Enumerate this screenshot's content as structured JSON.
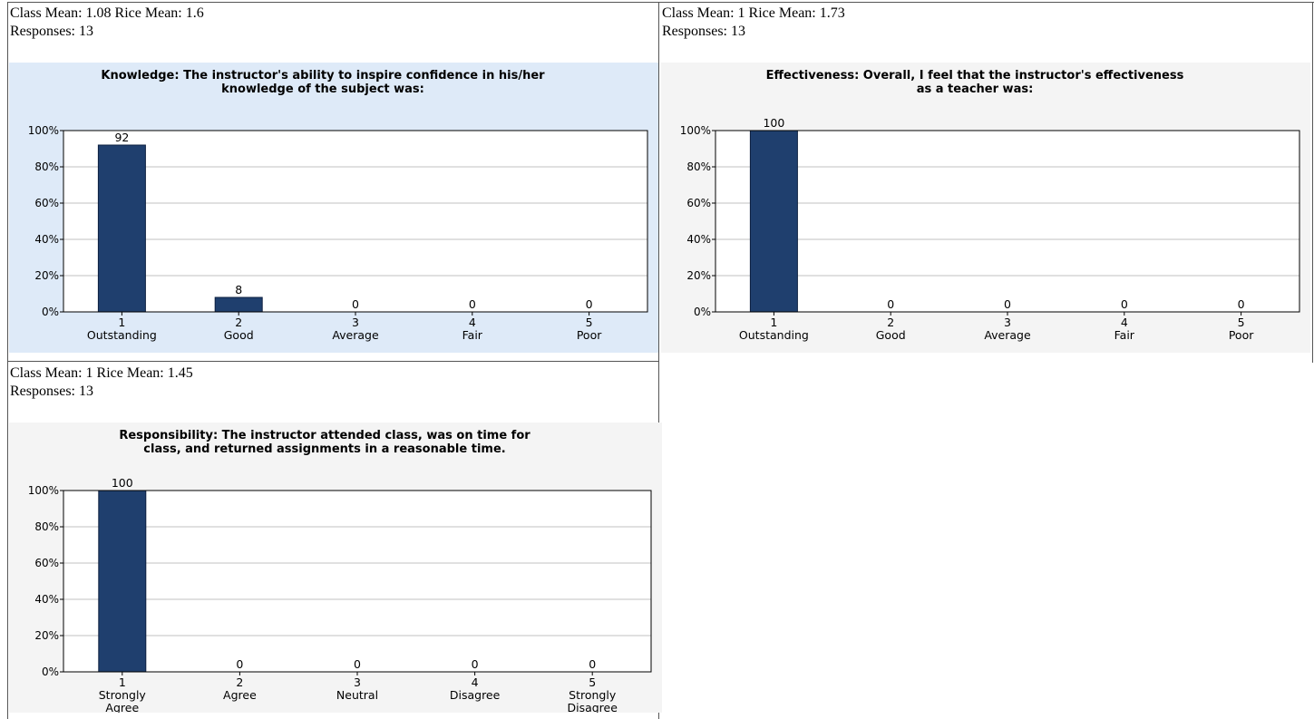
{
  "panels": [
    {
      "stats": {
        "line1": "Class Mean: 1.08 Rice Mean: 1.6",
        "line2": "Responses: 13"
      },
      "bg": "#deeaf8",
      "chart_data": {
        "type": "bar",
        "title_lines": [
          "Knowledge: The instructor's ability to inspire confidence in his/her",
          "knowledge of the subject was:"
        ],
        "categories": [
          [
            "1",
            "Outstanding"
          ],
          [
            "2",
            "Good"
          ],
          [
            "3",
            "Average"
          ],
          [
            "4",
            "Fair"
          ],
          [
            "5",
            "Poor"
          ]
        ],
        "values": [
          92,
          8,
          0,
          0,
          0
        ],
        "ylim": [
          0,
          100
        ],
        "yticks": [
          "0%",
          "20%",
          "40%",
          "60%",
          "80%",
          "100%"
        ],
        "grid": true
      }
    },
    {
      "stats": {
        "line1": "Class Mean: 1 Rice Mean: 1.73",
        "line2": "Responses: 13"
      },
      "bg": "#f4f4f4",
      "chart_data": {
        "type": "bar",
        "title_lines": [
          "Effectiveness: Overall, I feel that the instructor's effectiveness",
          "as a teacher was:"
        ],
        "categories": [
          [
            "1",
            "Outstanding"
          ],
          [
            "2",
            "Good"
          ],
          [
            "3",
            "Average"
          ],
          [
            "4",
            "Fair"
          ],
          [
            "5",
            "Poor"
          ]
        ],
        "values": [
          100,
          0,
          0,
          0,
          0
        ],
        "ylim": [
          0,
          100
        ],
        "yticks": [
          "0%",
          "20%",
          "40%",
          "60%",
          "80%",
          "100%"
        ],
        "grid": true
      }
    },
    {
      "stats": {
        "line1": "Class Mean: 1 Rice Mean: 1.45",
        "line2": "Responses: 13"
      },
      "bg": "#f4f4f4",
      "chart_data": {
        "type": "bar",
        "title_lines": [
          "Responsibility: The instructor attended class, was on time for",
          "class, and returned assignments in a reasonable time."
        ],
        "categories": [
          [
            "1",
            "Strongly",
            "Agree"
          ],
          [
            "2",
            "Agree"
          ],
          [
            "3",
            "Neutral"
          ],
          [
            "4",
            "Disagree"
          ],
          [
            "5",
            "Strongly",
            "Disagree"
          ]
        ],
        "values": [
          100,
          0,
          0,
          0,
          0
        ],
        "ylim": [
          0,
          100
        ],
        "yticks": [
          "0%",
          "20%",
          "40%",
          "60%",
          "80%",
          "100%"
        ],
        "grid": true
      }
    }
  ],
  "colors": {
    "bar": "#1f3f6e",
    "bar_edge": "#0d2040",
    "grid": "#c0c0c0",
    "axis": "#000000"
  }
}
